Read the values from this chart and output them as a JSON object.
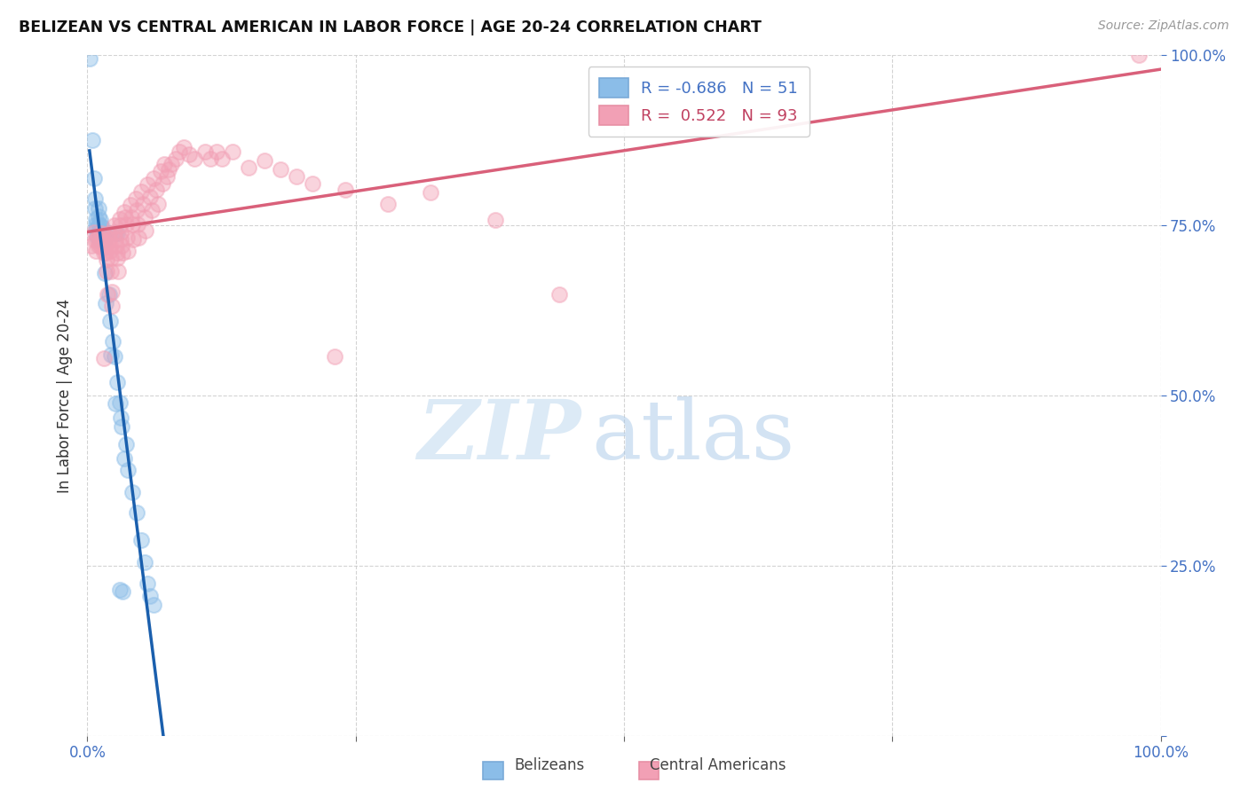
{
  "title": "BELIZEAN VS CENTRAL AMERICAN IN LABOR FORCE | AGE 20-24 CORRELATION CHART",
  "source_text": "Source: ZipAtlas.com",
  "ylabel": "In Labor Force | Age 20-24",
  "xlim": [
    0.0,
    1.0
  ],
  "ylim": [
    0.0,
    1.0
  ],
  "legend_R_blue": "-0.686",
  "legend_N_blue": "51",
  "legend_R_pink": "0.522",
  "legend_N_pink": "93",
  "blue_color": "#8BBDE8",
  "pink_color": "#F2A0B5",
  "blue_line_color": "#1A5FAD",
  "pink_line_color": "#D9607A",
  "background_color": "#FFFFFF",
  "grid_color": "#C8C8C8",
  "blue_scatter": [
    [
      0.002,
      0.995
    ],
    [
      0.005,
      0.875
    ],
    [
      0.006,
      0.82
    ],
    [
      0.007,
      0.79
    ],
    [
      0.007,
      0.775
    ],
    [
      0.008,
      0.76
    ],
    [
      0.008,
      0.752
    ],
    [
      0.008,
      0.745
    ],
    [
      0.009,
      0.735
    ],
    [
      0.01,
      0.775
    ],
    [
      0.01,
      0.763
    ],
    [
      0.01,
      0.752
    ],
    [
      0.011,
      0.745
    ],
    [
      0.011,
      0.738
    ],
    [
      0.011,
      0.73
    ],
    [
      0.012,
      0.758
    ],
    [
      0.012,
      0.75
    ],
    [
      0.012,
      0.742
    ],
    [
      0.013,
      0.737
    ],
    [
      0.013,
      0.73
    ],
    [
      0.014,
      0.748
    ],
    [
      0.014,
      0.742
    ],
    [
      0.015,
      0.738
    ],
    [
      0.015,
      0.733
    ],
    [
      0.016,
      0.73
    ],
    [
      0.016,
      0.68
    ],
    [
      0.017,
      0.635
    ],
    [
      0.02,
      0.648
    ],
    [
      0.021,
      0.61
    ],
    [
      0.022,
      0.56
    ],
    [
      0.024,
      0.58
    ],
    [
      0.025,
      0.558
    ],
    [
      0.026,
      0.488
    ],
    [
      0.028,
      0.52
    ],
    [
      0.03,
      0.49
    ],
    [
      0.031,
      0.468
    ],
    [
      0.032,
      0.455
    ],
    [
      0.034,
      0.408
    ],
    [
      0.036,
      0.428
    ],
    [
      0.038,
      0.39
    ],
    [
      0.042,
      0.358
    ],
    [
      0.046,
      0.328
    ],
    [
      0.05,
      0.288
    ],
    [
      0.053,
      0.255
    ],
    [
      0.03,
      0.215
    ],
    [
      0.033,
      0.212
    ],
    [
      0.056,
      0.224
    ],
    [
      0.058,
      0.205
    ],
    [
      0.062,
      0.192
    ],
    [
      0.026,
      0.738
    ],
    [
      0.028,
      0.738
    ]
  ],
  "pink_scatter": [
    [
      0.004,
      0.72
    ],
    [
      0.006,
      0.74
    ],
    [
      0.007,
      0.728
    ],
    [
      0.008,
      0.712
    ],
    [
      0.009,
      0.73
    ],
    [
      0.01,
      0.72
    ],
    [
      0.01,
      0.735
    ],
    [
      0.011,
      0.728
    ],
    [
      0.012,
      0.72
    ],
    [
      0.013,
      0.738
    ],
    [
      0.013,
      0.728
    ],
    [
      0.014,
      0.718
    ],
    [
      0.015,
      0.71
    ],
    [
      0.016,
      0.735
    ],
    [
      0.016,
      0.725
    ],
    [
      0.017,
      0.718
    ],
    [
      0.017,
      0.71
    ],
    [
      0.018,
      0.7
    ],
    [
      0.018,
      0.682
    ],
    [
      0.019,
      0.648
    ],
    [
      0.02,
      0.738
    ],
    [
      0.02,
      0.73
    ],
    [
      0.021,
      0.72
    ],
    [
      0.021,
      0.712
    ],
    [
      0.022,
      0.702
    ],
    [
      0.022,
      0.682
    ],
    [
      0.023,
      0.652
    ],
    [
      0.023,
      0.632
    ],
    [
      0.025,
      0.75
    ],
    [
      0.025,
      0.74
    ],
    [
      0.026,
      0.73
    ],
    [
      0.027,
      0.72
    ],
    [
      0.028,
      0.71
    ],
    [
      0.028,
      0.702
    ],
    [
      0.029,
      0.682
    ],
    [
      0.03,
      0.76
    ],
    [
      0.03,
      0.75
    ],
    [
      0.031,
      0.74
    ],
    [
      0.031,
      0.73
    ],
    [
      0.032,
      0.72
    ],
    [
      0.033,
      0.71
    ],
    [
      0.034,
      0.77
    ],
    [
      0.035,
      0.762
    ],
    [
      0.036,
      0.752
    ],
    [
      0.037,
      0.732
    ],
    [
      0.038,
      0.712
    ],
    [
      0.04,
      0.78
    ],
    [
      0.041,
      0.762
    ],
    [
      0.042,
      0.752
    ],
    [
      0.043,
      0.73
    ],
    [
      0.045,
      0.79
    ],
    [
      0.046,
      0.772
    ],
    [
      0.047,
      0.752
    ],
    [
      0.048,
      0.732
    ],
    [
      0.05,
      0.8
    ],
    [
      0.052,
      0.782
    ],
    [
      0.053,
      0.762
    ],
    [
      0.054,
      0.742
    ],
    [
      0.056,
      0.81
    ],
    [
      0.058,
      0.792
    ],
    [
      0.06,
      0.772
    ],
    [
      0.062,
      0.82
    ],
    [
      0.064,
      0.802
    ],
    [
      0.066,
      0.782
    ],
    [
      0.068,
      0.83
    ],
    [
      0.07,
      0.812
    ],
    [
      0.072,
      0.84
    ],
    [
      0.074,
      0.822
    ],
    [
      0.076,
      0.832
    ],
    [
      0.078,
      0.84
    ],
    [
      0.082,
      0.848
    ],
    [
      0.086,
      0.858
    ],
    [
      0.09,
      0.865
    ],
    [
      0.095,
      0.855
    ],
    [
      0.1,
      0.848
    ],
    [
      0.11,
      0.858
    ],
    [
      0.115,
      0.848
    ],
    [
      0.12,
      0.858
    ],
    [
      0.125,
      0.848
    ],
    [
      0.135,
      0.858
    ],
    [
      0.15,
      0.835
    ],
    [
      0.165,
      0.845
    ],
    [
      0.18,
      0.832
    ],
    [
      0.195,
      0.822
    ],
    [
      0.21,
      0.812
    ],
    [
      0.24,
      0.802
    ],
    [
      0.28,
      0.782
    ],
    [
      0.32,
      0.798
    ],
    [
      0.38,
      0.758
    ],
    [
      0.015,
      0.555
    ],
    [
      0.23,
      0.558
    ],
    [
      0.44,
      0.648
    ],
    [
      0.98,
      1.0
    ]
  ]
}
